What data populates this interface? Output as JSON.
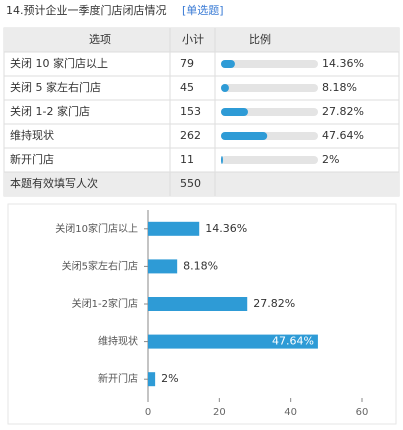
{
  "header": {
    "title": "14.预计企业一季度门店闭店情况",
    "tag": "[单选题]"
  },
  "table": {
    "columns": [
      "选项",
      "小计",
      "比例"
    ],
    "rows": [
      {
        "option": "关闭 10 家门店以上",
        "count": 79,
        "ratio": 14.36,
        "ratio_label": "14.36%"
      },
      {
        "option": "关闭 5 家左右门店",
        "count": 45,
        "ratio": 8.18,
        "ratio_label": "8.18%"
      },
      {
        "option": "关闭 1-2 家门店",
        "count": 153,
        "ratio": 27.82,
        "ratio_label": "27.82%"
      },
      {
        "option": "维持现状",
        "count": 262,
        "ratio": 47.64,
        "ratio_label": "47.64%"
      },
      {
        "option": "新开门店",
        "count": 11,
        "ratio": 2,
        "ratio_label": "2%"
      }
    ],
    "footer": {
      "label": "本题有效填写人次",
      "count": 550
    }
  },
  "chart_data": {
    "type": "bar",
    "orientation": "horizontal",
    "categories": [
      "关闭10家门店以上",
      "关闭5家左右门店",
      "关闭1-2家门店",
      "维持现状",
      "新开门店"
    ],
    "values": [
      14.36,
      8.18,
      27.82,
      47.64,
      2
    ],
    "value_labels": [
      "14.36%",
      "8.18%",
      "27.82%",
      "47.64%",
      "2%"
    ],
    "color": "#2e9bd6",
    "xlim": [
      0,
      60
    ],
    "xticks": [
      0,
      20,
      40,
      60
    ]
  }
}
